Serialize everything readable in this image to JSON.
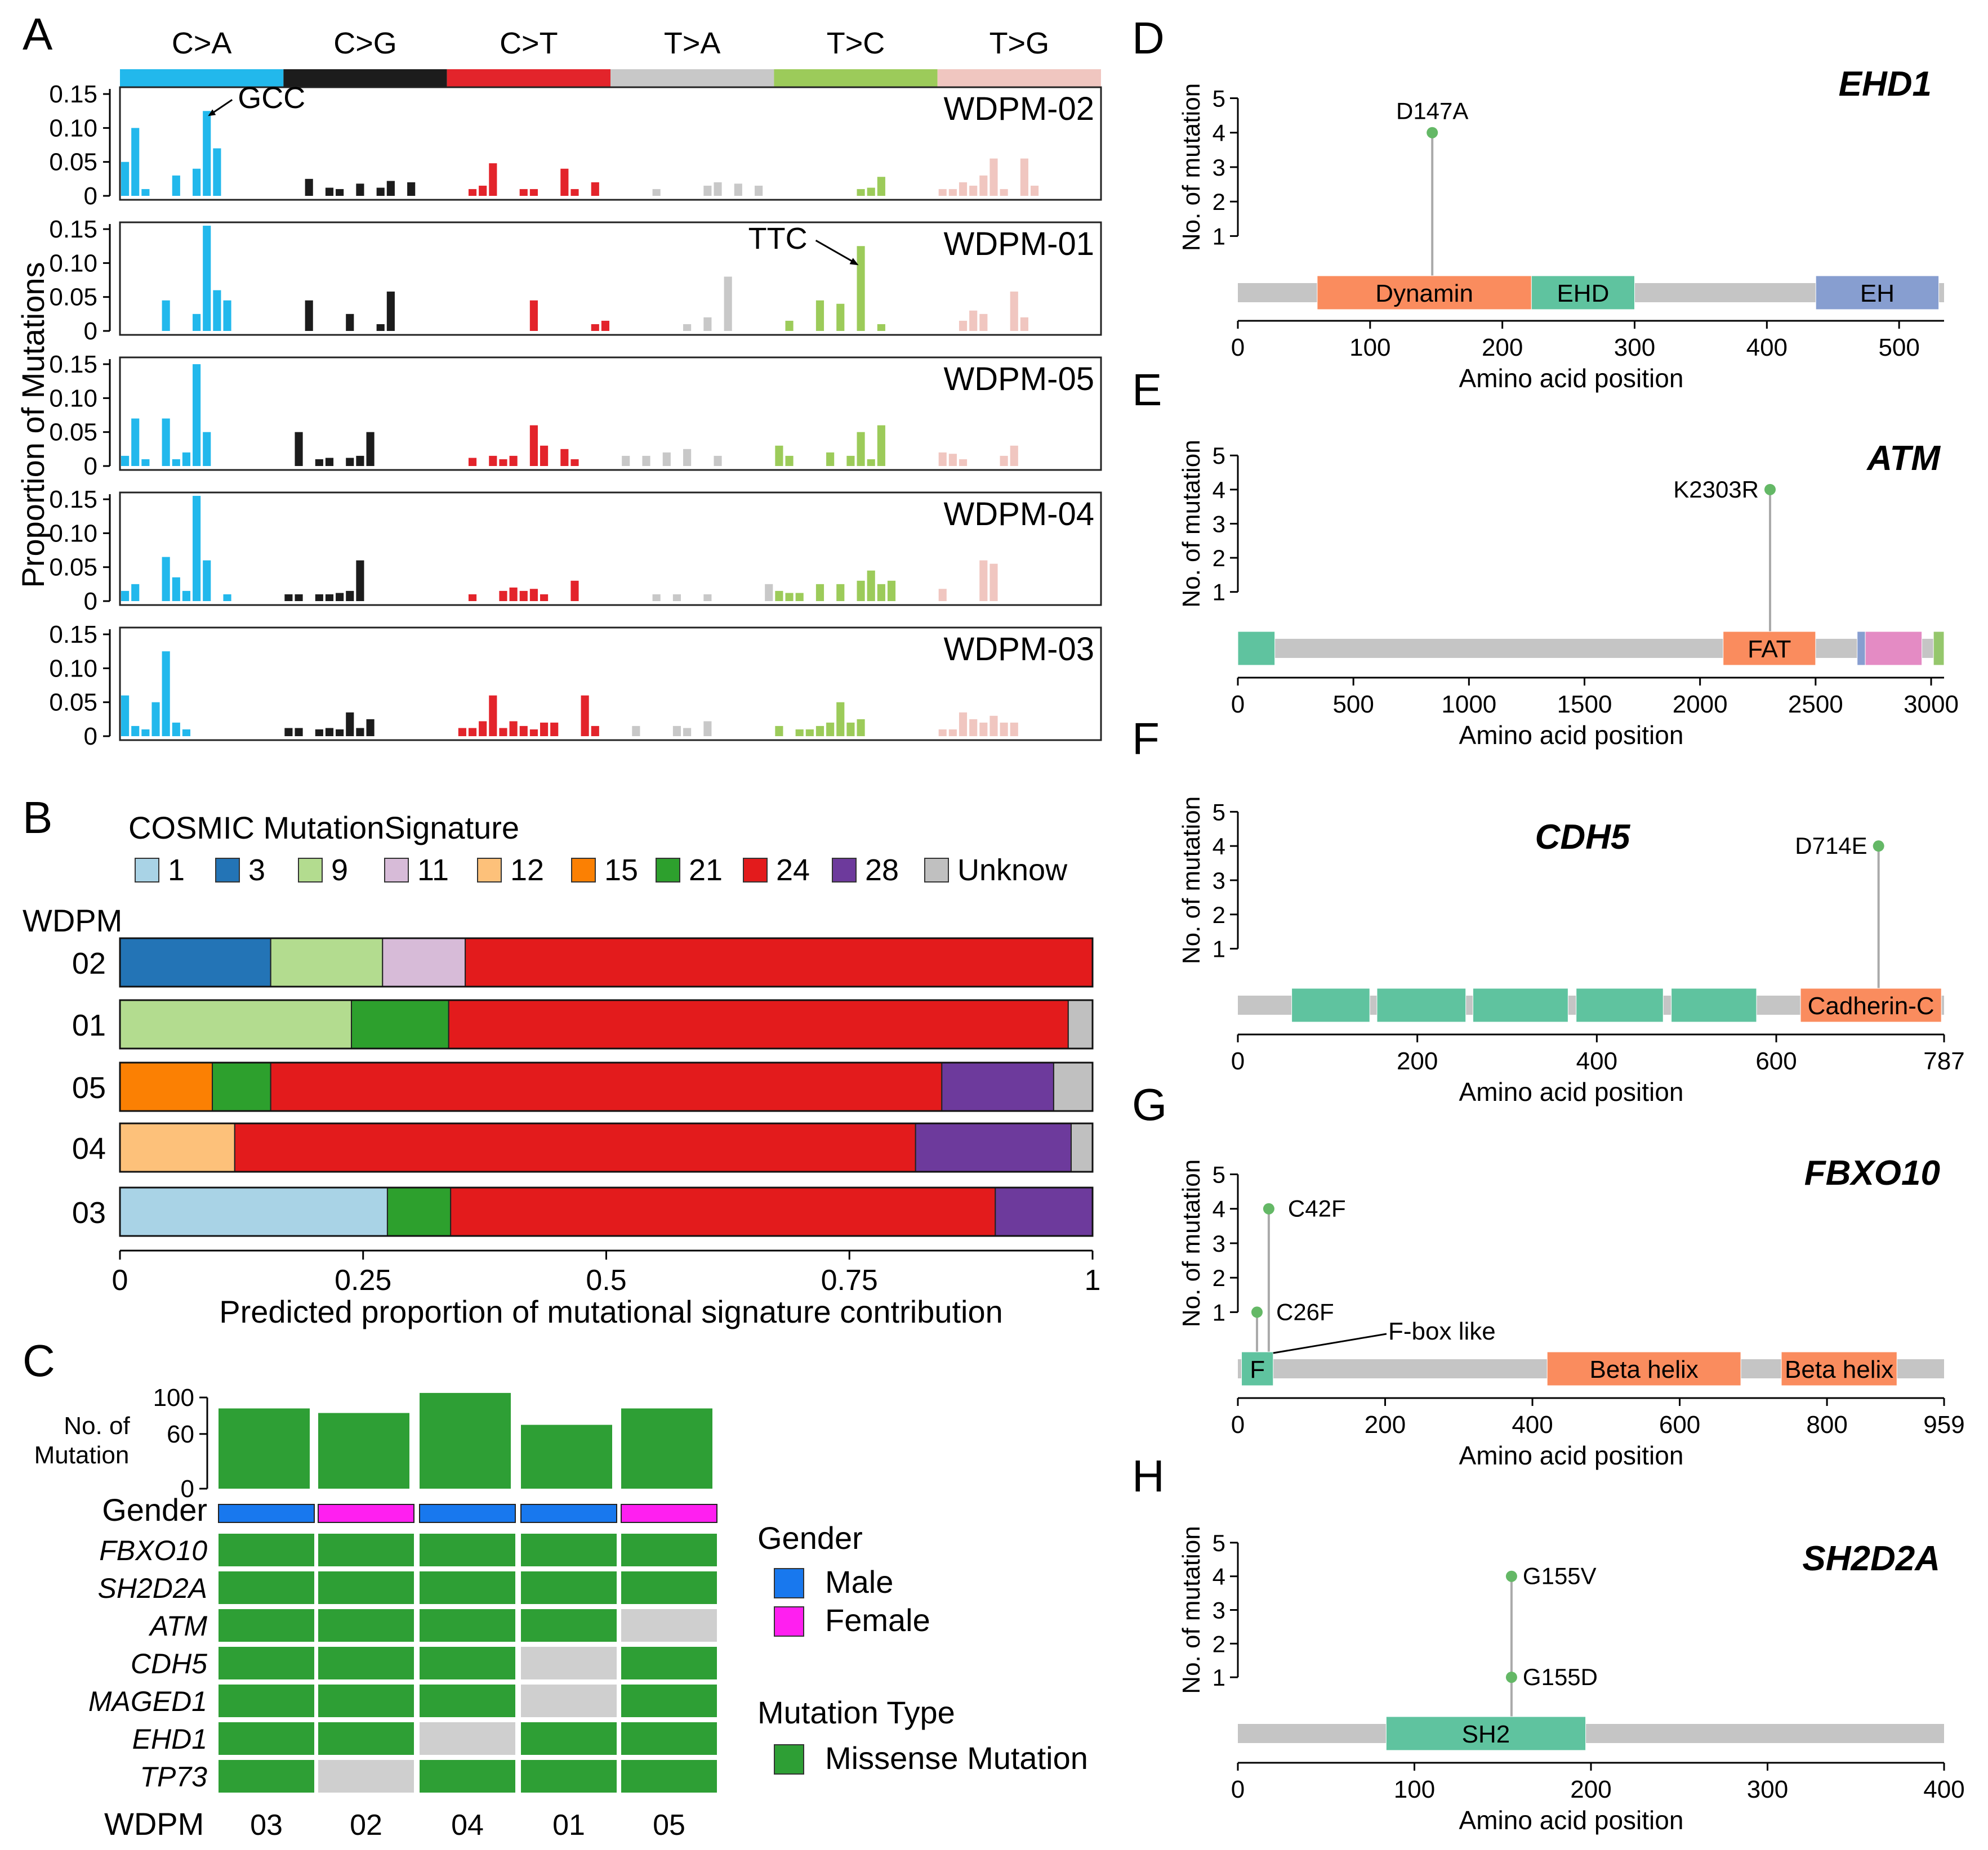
{
  "panels": {
    "A": "A",
    "B": "B",
    "C": "C",
    "D": "D",
    "E": "E",
    "F": "F",
    "G": "G",
    "H": "H"
  },
  "colors": {
    "C>A": "#22b8ec",
    "C>G": "#1c1c1c",
    "C>T": "#e3242b",
    "T>A": "#c8c8c8",
    "T>C": "#9ccb5a",
    "T>G": "#f0c6c0",
    "sig": {
      "1": "#a9d3e6",
      "3": "#2374b6",
      "9": "#b3dc8f",
      "11": "#d7bbd8",
      "12": "#fdc17a",
      "15": "#fb8003",
      "21": "#2da02d",
      "24": "#e31b1c",
      "28": "#6d3a9c",
      "Unknow": "#c0c0c0"
    },
    "male": "#1878ee",
    "female": "#ff1ff0",
    "missense": "#2e9f35",
    "none": "#cfcfcf",
    "domain": {
      "orange": "#fa8c5e",
      "teal": "#5fc39f",
      "blue": "#879ed0",
      "pink": "#e48bc4",
      "green": "#95c76c",
      "backbone": "#c5c5c5",
      "lollipop": "#64b866"
    }
  },
  "panel_a": {
    "ylabel": "Proportion of Mutations",
    "yticks": [
      "0.15",
      "0.10",
      "0.05",
      "0"
    ],
    "annotation_gcc": "GCC",
    "annotation_ttc": "TTC",
    "chart_data": {
      "type": "bar",
      "mutation_classes": [
        "C>A",
        "C>G",
        "C>T",
        "T>A",
        "T>C",
        "T>G"
      ],
      "ylim": [
        0,
        0.16
      ],
      "series": [
        {
          "name": "WDPM-02",
          "values": [
            0.05,
            0.1,
            0.01,
            0,
            0,
            0.03,
            0,
            0.04,
            0.125,
            0.07,
            0,
            0,
            0,
            0,
            0,
            0,
            0,
            0,
            0.025,
            0,
            0.012,
            0.01,
            0,
            0.018,
            0,
            0.012,
            0.022,
            0,
            0.02,
            0,
            0,
            0,
            0,
            0,
            0.01,
            0.015,
            0.048,
            0,
            0,
            0.01,
            0.01,
            0,
            0,
            0.04,
            0.01,
            0,
            0.02,
            0,
            0,
            0,
            0,
            0,
            0.01,
            0,
            0,
            0,
            0,
            0.015,
            0.02,
            0,
            0.018,
            0,
            0.015,
            0,
            0,
            0,
            0,
            0,
            0,
            0,
            0,
            0,
            0.01,
            0.012,
            0.028,
            0,
            0,
            0,
            0,
            0,
            0.01,
            0.01,
            0.02,
            0.015,
            0.03,
            0.055,
            0.01,
            0,
            0.055,
            0.015,
            0,
            0,
            0,
            0,
            0,
            0
          ]
        },
        {
          "name": "WDPM-01",
          "values": [
            0,
            0,
            0,
            0,
            0.045,
            0,
            0,
            0.025,
            0.155,
            0.06,
            0.045,
            0,
            0,
            0,
            0,
            0,
            0,
            0,
            0.045,
            0,
            0,
            0,
            0.025,
            0,
            0,
            0.01,
            0.058,
            0,
            0,
            0,
            0,
            0,
            0,
            0,
            0,
            0,
            0,
            0,
            0,
            0,
            0.045,
            0,
            0,
            0,
            0,
            0,
            0.01,
            0.015,
            0,
            0,
            0,
            0,
            0,
            0,
            0,
            0.01,
            0,
            0.02,
            0,
            0.08,
            0,
            0,
            0,
            0,
            0,
            0.015,
            0,
            0,
            0.045,
            0,
            0.04,
            0,
            0.125,
            0,
            0.01,
            0,
            0,
            0,
            0,
            0,
            0,
            0,
            0.015,
            0.03,
            0.025,
            0,
            0,
            0.058,
            0.02,
            0,
            0,
            0,
            0,
            0,
            0,
            0
          ]
        },
        {
          "name": "WDPM-05",
          "values": [
            0.015,
            0.07,
            0.01,
            0,
            0.07,
            0.01,
            0.02,
            0.15,
            0.05,
            0,
            0,
            0,
            0,
            0,
            0,
            0,
            0,
            0.05,
            0,
            0.01,
            0.012,
            0,
            0.012,
            0.015,
            0.05,
            0,
            0,
            0,
            0,
            0,
            0,
            0,
            0,
            0,
            0.012,
            0,
            0.015,
            0.01,
            0.015,
            0,
            0.06,
            0.03,
            0,
            0.025,
            0.01,
            0,
            0,
            0,
            0,
            0.015,
            0,
            0.015,
            0,
            0.02,
            0,
            0.025,
            0,
            0,
            0.015,
            0,
            0,
            0,
            0,
            0,
            0.03,
            0.015,
            0,
            0,
            0,
            0.02,
            0,
            0.015,
            0.05,
            0.01,
            0.06,
            0,
            0,
            0,
            0,
            0,
            0.02,
            0.018,
            0.01,
            0,
            0,
            0,
            0.015,
            0.03,
            0,
            0,
            0,
            0,
            0,
            0,
            0,
            0
          ]
        },
        {
          "name": "WDPM-04",
          "values": [
            0.015,
            0.025,
            0,
            0,
            0.065,
            0.035,
            0.015,
            0.155,
            0.06,
            0,
            0.01,
            0,
            0,
            0,
            0,
            0,
            0.01,
            0.01,
            0,
            0.01,
            0.01,
            0.012,
            0.015,
            0.06,
            0,
            0,
            0,
            0,
            0,
            0,
            0,
            0,
            0,
            0,
            0.01,
            0,
            0,
            0.015,
            0.02,
            0.015,
            0.018,
            0.01,
            0,
            0,
            0.03,
            0,
            0,
            0,
            0,
            0,
            0,
            0,
            0.01,
            0,
            0.01,
            0,
            0,
            0.01,
            0,
            0,
            0,
            0,
            0,
            0.025,
            0.015,
            0.012,
            0.012,
            0,
            0.025,
            0,
            0.025,
            0,
            0.03,
            0.045,
            0.025,
            0.03,
            0,
            0,
            0,
            0,
            0.018,
            0,
            0,
            0,
            0.06,
            0.055,
            0,
            0,
            0,
            0,
            0,
            0,
            0,
            0,
            0
          ]
        },
        {
          "name": "WDPM-03",
          "values": [
            0.06,
            0.015,
            0.01,
            0.05,
            0.125,
            0.02,
            0.01,
            0,
            0,
            0,
            0,
            0,
            0,
            0,
            0,
            0,
            0.012,
            0.012,
            0,
            0.01,
            0.012,
            0.01,
            0.035,
            0.012,
            0.025,
            0,
            0,
            0,
            0,
            0,
            0,
            0,
            0,
            0.012,
            0.012,
            0.022,
            0.06,
            0.012,
            0.022,
            0.015,
            0.01,
            0.02,
            0.02,
            0,
            0,
            0.06,
            0.015,
            0,
            0,
            0,
            0.015,
            0,
            0,
            0,
            0.015,
            0.012,
            0,
            0.022,
            0,
            0,
            0,
            0,
            0,
            0,
            0.015,
            0,
            0.01,
            0.01,
            0.015,
            0.02,
            0.05,
            0.02,
            0.025,
            0,
            0,
            0,
            0,
            0,
            0,
            0,
            0.01,
            0.01,
            0.035,
            0.025,
            0.02,
            0.03,
            0.02,
            0.02,
            0,
            0,
            0,
            0,
            0,
            0,
            0,
            0
          ]
        }
      ]
    }
  },
  "panel_b": {
    "legend_title": "COSMIC MutationSignature",
    "row_title": "WDPM",
    "xlabel": "Predicted proportion of mutational signature contribution",
    "xticks": [
      "0",
      "0.25",
      "0.5",
      "0.75",
      "1"
    ],
    "chart_data": {
      "type": "bar",
      "orientation": "horizontal-stacked",
      "signatures": [
        "1",
        "3",
        "9",
        "11",
        "12",
        "15",
        "21",
        "24",
        "28",
        "Unknow"
      ],
      "xlim": [
        0,
        1
      ],
      "rows": [
        {
          "label": "02",
          "segments": [
            [
              "3",
              0.155
            ],
            [
              "9",
              0.115
            ],
            [
              "11",
              0.085
            ],
            [
              "24",
              0.645
            ]
          ]
        },
        {
          "label": "01",
          "segments": [
            [
              "9",
              0.238
            ],
            [
              "21",
              0.1
            ],
            [
              "24",
              0.637
            ],
            [
              "Unknow",
              0.025
            ]
          ]
        },
        {
          "label": "05",
          "segments": [
            [
              "15",
              0.095
            ],
            [
              "21",
              0.06
            ],
            [
              "24",
              0.69
            ],
            [
              "28",
              0.115
            ],
            [
              "Unknow",
              0.04
            ]
          ]
        },
        {
          "label": "04",
          "segments": [
            [
              "12",
              0.118
            ],
            [
              "24",
              0.7
            ],
            [
              "28",
              0.16
            ],
            [
              "Unknow",
              0.022
            ]
          ]
        },
        {
          "label": "03",
          "segments": [
            [
              "1",
              0.275
            ],
            [
              "21",
              0.065
            ],
            [
              "24",
              0.56
            ],
            [
              "28",
              0.1
            ]
          ]
        }
      ]
    }
  },
  "panel_c": {
    "nmut_label_line1": "No. of",
    "nmut_label_line2": "Mutation",
    "yticks": [
      "100",
      "60",
      "0"
    ],
    "gender_label": "Gender",
    "wdpm_label": "WDPM",
    "samples": [
      "03",
      "02",
      "04",
      "01",
      "05"
    ],
    "mutation_counts": [
      88,
      83,
      105,
      70,
      88
    ],
    "genders": [
      "male",
      "female",
      "male",
      "male",
      "female"
    ],
    "genes": [
      "FBXO10",
      "SH2D2A",
      "ATM",
      "CDH5",
      "MAGED1",
      "EHD1",
      "TP73"
    ],
    "matrix": [
      [
        1,
        1,
        1,
        1,
        1
      ],
      [
        1,
        1,
        1,
        1,
        1
      ],
      [
        1,
        1,
        1,
        1,
        0
      ],
      [
        1,
        1,
        1,
        0,
        1
      ],
      [
        1,
        1,
        1,
        0,
        1
      ],
      [
        1,
        1,
        0,
        1,
        1
      ],
      [
        1,
        0,
        1,
        1,
        1
      ]
    ],
    "legend": {
      "gender_title": "Gender",
      "male": "Male",
      "female": "Female",
      "mut_title": "Mutation Type",
      "missense": "Missense Mutation"
    }
  },
  "lollipops": {
    "ylabel": "No. of mutation",
    "xlabel": "Amino acid position",
    "yticks": [
      "1",
      "2",
      "3",
      "4",
      "5"
    ],
    "D": {
      "gene": "EHD1",
      "length": 534,
      "xticks": [
        0,
        100,
        200,
        300,
        400,
        500
      ],
      "xtick_labels": [
        "0",
        "100",
        "200",
        "300",
        "400",
        "500"
      ],
      "domains": [
        {
          "name": "Dynamin",
          "start": 60,
          "end": 222,
          "color": "orange"
        },
        {
          "name": "EHD",
          "start": 222,
          "end": 300,
          "color": "teal"
        },
        {
          "name": "EH",
          "start": 437,
          "end": 530,
          "color": "blue"
        }
      ],
      "mutations": [
        {
          "label": "D147A",
          "pos": 147,
          "count": 4
        }
      ]
    },
    "E": {
      "gene": "ATM",
      "length": 3056,
      "xticks": [
        0,
        500,
        1000,
        1500,
        2000,
        2500,
        3000
      ],
      "xtick_labels": [
        "0",
        "500",
        "1000",
        "1500",
        "2000",
        "2500",
        "3000"
      ],
      "domains": [
        {
          "name": "",
          "start": 0,
          "end": 160,
          "color": "teal"
        },
        {
          "name": "FAT",
          "start": 2100,
          "end": 2500,
          "color": "orange"
        },
        {
          "name": "",
          "start": 2680,
          "end": 2715,
          "color": "blue"
        },
        {
          "name": "",
          "start": 2715,
          "end": 2960,
          "color": "pink"
        },
        {
          "name": "",
          "start": 3010,
          "end": 3056,
          "color": "green"
        }
      ],
      "mutations": [
        {
          "label": "K2303R",
          "pos": 2303,
          "count": 4
        }
      ]
    },
    "F": {
      "gene": "CDH5",
      "length": 787,
      "xticks": [
        0,
        200,
        400,
        600,
        787
      ],
      "xtick_labels": [
        "0",
        "200",
        "400",
        "600",
        "787"
      ],
      "domains": [
        {
          "name": "",
          "start": 60,
          "end": 147,
          "color": "teal"
        },
        {
          "name": "",
          "start": 155,
          "end": 254,
          "color": "teal"
        },
        {
          "name": "",
          "start": 262,
          "end": 368,
          "color": "teal"
        },
        {
          "name": "",
          "start": 377,
          "end": 474,
          "color": "teal"
        },
        {
          "name": "",
          "start": 483,
          "end": 578,
          "color": "teal"
        },
        {
          "name": "Cadherin-C",
          "start": 627,
          "end": 784,
          "color": "orange"
        }
      ],
      "mutations": [
        {
          "label": "D714E",
          "pos": 714,
          "count": 4
        }
      ]
    },
    "G": {
      "gene": "FBXO10",
      "length": 959,
      "xticks": [
        0,
        200,
        400,
        600,
        800,
        959
      ],
      "xtick_labels": [
        "0",
        "200",
        "400",
        "600",
        "800",
        "959"
      ],
      "callout": "F-box like",
      "domains": [
        {
          "name": "F",
          "start": 5,
          "end": 48,
          "color": "teal"
        },
        {
          "name": "Beta helix",
          "start": 420,
          "end": 683,
          "color": "orange"
        },
        {
          "name": "Beta helix",
          "start": 738,
          "end": 895,
          "color": "orange"
        }
      ],
      "mutations": [
        {
          "label": "C26F",
          "pos": 26,
          "count": 1
        },
        {
          "label": "C42F",
          "pos": 42,
          "count": 4
        }
      ]
    },
    "H": {
      "gene": "SH2D2A",
      "length": 400,
      "xticks": [
        0,
        100,
        200,
        300,
        400
      ],
      "xtick_labels": [
        "0",
        "100",
        "200",
        "300",
        "400"
      ],
      "domains": [
        {
          "name": "SH2",
          "start": 84,
          "end": 197,
          "color": "teal"
        }
      ],
      "mutations": [
        {
          "label": "G155D",
          "pos": 155,
          "count": 1
        },
        {
          "label": "G155V",
          "pos": 155,
          "count": 4
        }
      ]
    }
  }
}
